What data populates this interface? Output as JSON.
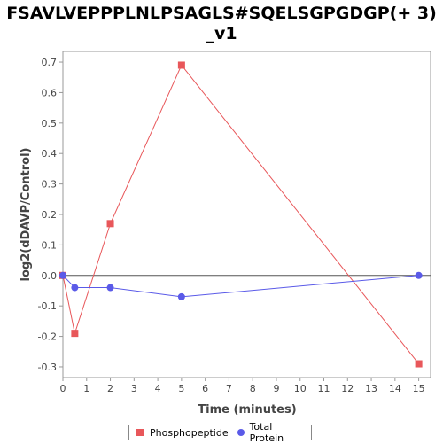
{
  "chart_data": {
    "type": "line",
    "title_lines": [
      "FSAVLVEPPPLNLPSAGLS#SQELSGPGDGP(+ 3)",
      "_v1"
    ],
    "xlabel": "Time (minutes)",
    "ylabel": "log2(dDAVP/Control)",
    "xlim": [
      0,
      15.5
    ],
    "ylim": [
      -0.335,
      0.735
    ],
    "x_ticks": [
      0,
      1,
      2,
      3,
      4,
      5,
      6,
      7,
      8,
      9,
      10,
      11,
      12,
      13,
      14,
      15
    ],
    "y_ticks": [
      -0.3,
      -0.2,
      -0.1,
      0.0,
      0.1,
      0.2,
      0.3,
      0.4,
      0.5,
      0.6,
      0.7
    ],
    "zero_line": true,
    "legend_position": "bottom",
    "series": [
      {
        "name": "Phosphopeptide",
        "color": "#e8575a",
        "marker": "square",
        "x": [
          0,
          0.5,
          2,
          5,
          15
        ],
        "y": [
          0.0,
          -0.19,
          0.17,
          0.69,
          -0.29
        ]
      },
      {
        "name": "Total Protein",
        "color": "#5a5ae8",
        "marker": "circle",
        "x": [
          0,
          0.5,
          2,
          5,
          15
        ],
        "y": [
          0.0,
          -0.04,
          -0.04,
          -0.07,
          0.0
        ]
      }
    ]
  }
}
